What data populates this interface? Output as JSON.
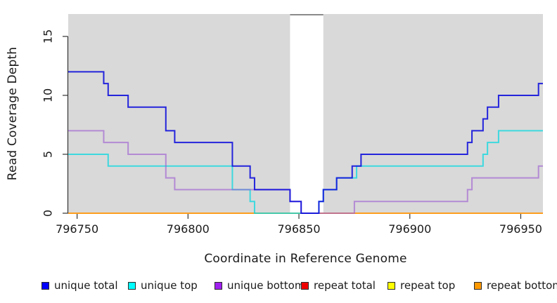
{
  "figure": {
    "x_label": "Coordinate in Reference Genome",
    "y_label": "Read Coverage Depth",
    "background_color": "#ffffff",
    "plot_background_color": "#d9d9d9",
    "axis_color": "#333333",
    "text_color": "#1a1a1a"
  },
  "chart_data": {
    "type": "line",
    "subtype": "step-after",
    "title": "",
    "xlabel": "Coordinate in Reference Genome",
    "ylabel": "Read Coverage Depth",
    "xlim": [
      796746,
      796960
    ],
    "ylim": [
      0,
      16.9
    ],
    "x_ticks": [
      "796750",
      "796800",
      "796850",
      "796900",
      "796950"
    ],
    "x_tick_values": [
      796750,
      796800,
      796850,
      796900,
      796950
    ],
    "y_ticks": [
      "0",
      "5",
      "10",
      "15"
    ],
    "y_tick_values": [
      0,
      5,
      10,
      15
    ],
    "grid": false,
    "legend_position": "bottom",
    "highlight_region": {
      "x_start": 796846,
      "x_end": 796861,
      "fill": "#ffffff",
      "top_border_color": "#8a8a8a"
    },
    "series": [
      {
        "name": "unique total",
        "line_color": "#0f0fdc",
        "legend_color": "#0000ff",
        "opacity": 0.9,
        "points": [
          [
            796746,
            12
          ],
          [
            796762,
            11
          ],
          [
            796764,
            10
          ],
          [
            796773,
            9
          ],
          [
            796790,
            7
          ],
          [
            796794,
            6
          ],
          [
            796820,
            4
          ],
          [
            796828,
            3
          ],
          [
            796830,
            2
          ],
          [
            796846,
            1
          ],
          [
            796851,
            0
          ],
          [
            796859,
            1
          ],
          [
            796861,
            2
          ],
          [
            796867,
            3
          ],
          [
            796874,
            4
          ],
          [
            796878,
            5
          ],
          [
            796926,
            6
          ],
          [
            796928,
            7
          ],
          [
            796933,
            8
          ],
          [
            796935,
            9
          ],
          [
            796940,
            10
          ],
          [
            796958,
            11
          ]
        ]
      },
      {
        "name": "unique top",
        "line_color": "#00d8e0",
        "legend_color": "#00ffff",
        "opacity": 0.72,
        "points": [
          [
            796746,
            5
          ],
          [
            796764,
            4
          ],
          [
            796820,
            2
          ],
          [
            796828,
            1
          ],
          [
            796830,
            0
          ],
          [
            796859,
            1
          ],
          [
            796861,
            2
          ],
          [
            796867,
            3
          ],
          [
            796876,
            4
          ],
          [
            796933,
            5
          ],
          [
            796935,
            6
          ],
          [
            796940,
            7
          ]
        ]
      },
      {
        "name": "unique bottom",
        "line_color": "#9b59d0",
        "legend_color": "#a020f0",
        "opacity": 0.62,
        "points": [
          [
            796746,
            7
          ],
          [
            796762,
            6
          ],
          [
            796773,
            5
          ],
          [
            796790,
            3
          ],
          [
            796794,
            2
          ],
          [
            796846,
            1
          ],
          [
            796851,
            0
          ],
          [
            796875,
            1
          ],
          [
            796926,
            2
          ],
          [
            796928,
            3
          ],
          [
            796958,
            4
          ]
        ]
      },
      {
        "name": "repeat total",
        "line_color": "#dd0000",
        "legend_color": "#ee0000",
        "opacity": 1,
        "points": [
          [
            796746,
            0
          ]
        ]
      },
      {
        "name": "repeat top",
        "line_color": "#ffff00",
        "legend_color": "#ffff00",
        "opacity": 1,
        "points": [
          [
            796746,
            0
          ]
        ]
      },
      {
        "name": "repeat bottom",
        "line_color": "#ff9d1e",
        "legend_color": "#ff9900",
        "opacity": 1,
        "points": [
          [
            796746,
            0
          ]
        ]
      }
    ],
    "draw_order": [
      3,
      4,
      5,
      1,
      2,
      0
    ]
  }
}
